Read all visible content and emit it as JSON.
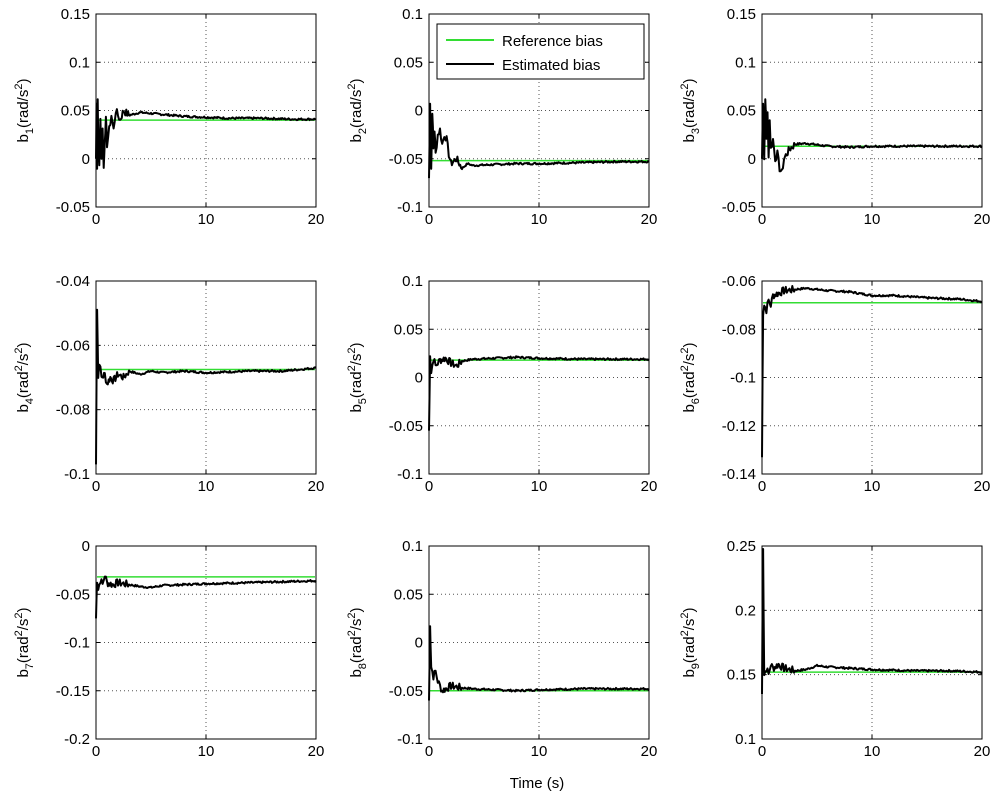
{
  "figure": {
    "legend": {
      "reference": "Reference bias",
      "estimated": "Estimated bias"
    },
    "xlabel": "Time (s)",
    "reference_color": "#33dd33",
    "estimate_color": "#000000"
  },
  "chart_data": [
    {
      "type": "line",
      "ylabel": {
        "sym": "b",
        "sub": "1",
        "unit": "(rad/s",
        "unitSup": "2",
        "close": ")"
      },
      "xlim": [
        0,
        20
      ],
      "ylim": [
        -0.05,
        0.15
      ],
      "xticks": [
        0,
        10,
        20
      ],
      "yticks": [
        -0.05,
        0,
        0.05,
        0.1,
        0.15
      ],
      "xticklabels": [
        "0",
        "10",
        "20"
      ],
      "yticklabels": [
        "-0.05",
        "0",
        "0.05",
        "0.1",
        "0.15"
      ],
      "reference": 0.04,
      "estimate": [
        [
          0,
          0.0
        ],
        [
          0.05,
          0.06
        ],
        [
          0.1,
          -0.01
        ],
        [
          0.15,
          0.065
        ],
        [
          0.2,
          0.02
        ],
        [
          0.3,
          -0.005
        ],
        [
          0.4,
          0.04
        ],
        [
          0.5,
          0.0
        ],
        [
          0.6,
          0.03
        ],
        [
          0.7,
          -0.01
        ],
        [
          0.8,
          0.02
        ],
        [
          0.9,
          0.04
        ],
        [
          1.0,
          0.015
        ],
        [
          1.2,
          0.03
        ],
        [
          1.4,
          0.045
        ],
        [
          1.6,
          0.03
        ],
        [
          1.8,
          0.05
        ],
        [
          2.0,
          0.045
        ],
        [
          2.2,
          0.04
        ],
        [
          2.5,
          0.05
        ],
        [
          3.0,
          0.045
        ],
        [
          4.0,
          0.048
        ],
        [
          6.0,
          0.046
        ],
        [
          8.0,
          0.044
        ],
        [
          10.0,
          0.043
        ],
        [
          12.0,
          0.042
        ],
        [
          15.0,
          0.042
        ],
        [
          18.0,
          0.041
        ],
        [
          20.0,
          0.041
        ]
      ]
    },
    {
      "type": "line",
      "ylabel": {
        "sym": "b",
        "sub": "2",
        "unit": "(rad/s",
        "unitSup": "2",
        "close": ")"
      },
      "xlim": [
        0,
        20
      ],
      "ylim": [
        -0.1,
        0.1
      ],
      "xticks": [
        0,
        10,
        20
      ],
      "yticks": [
        -0.1,
        -0.05,
        0,
        0.05,
        0.1
      ],
      "xticklabels": [
        "0",
        "10",
        "20"
      ],
      "yticklabels": [
        "-0.1",
        "-0.05",
        "0",
        "0.05",
        "0.1"
      ],
      "reference": -0.052,
      "estimate": [
        [
          0,
          -0.07
        ],
        [
          0.1,
          0.01
        ],
        [
          0.2,
          -0.06
        ],
        [
          0.3,
          0.0
        ],
        [
          0.4,
          -0.04
        ],
        [
          0.5,
          -0.02
        ],
        [
          0.6,
          -0.045
        ],
        [
          0.8,
          -0.025
        ],
        [
          1.0,
          -0.02
        ],
        [
          1.2,
          -0.035
        ],
        [
          1.4,
          -0.025
        ],
        [
          1.6,
          -0.03
        ],
        [
          1.8,
          -0.045
        ],
        [
          2.0,
          -0.055
        ],
        [
          2.5,
          -0.05
        ],
        [
          3.0,
          -0.06
        ],
        [
          3.5,
          -0.055
        ],
        [
          4.0,
          -0.057
        ],
        [
          6.0,
          -0.056
        ],
        [
          8.0,
          -0.055
        ],
        [
          10.0,
          -0.055
        ],
        [
          14.0,
          -0.054
        ],
        [
          17.0,
          -0.053
        ],
        [
          20.0,
          -0.053
        ]
      ]
    },
    {
      "type": "line",
      "ylabel": {
        "sym": "b",
        "sub": "3",
        "unit": "(rad/s",
        "unitSup": "2",
        "close": ")"
      },
      "xlim": [
        0,
        20
      ],
      "ylim": [
        -0.05,
        0.15
      ],
      "xticks": [
        0,
        10,
        20
      ],
      "yticks": [
        -0.05,
        0,
        0.05,
        0.1,
        0.15
      ],
      "xticklabels": [
        "0",
        "10",
        "20"
      ],
      "yticklabels": [
        "-0.05",
        "0",
        "0.05",
        "0.1",
        "0.15"
      ],
      "reference": 0.013,
      "estimate": [
        [
          0,
          0.0
        ],
        [
          0.1,
          0.06
        ],
        [
          0.2,
          0.0
        ],
        [
          0.3,
          0.065
        ],
        [
          0.4,
          0.02
        ],
        [
          0.5,
          0.05
        ],
        [
          0.6,
          0.0
        ],
        [
          0.7,
          0.04
        ],
        [
          0.8,
          0.01
        ],
        [
          1.0,
          0.02
        ],
        [
          1.2,
          0.0
        ],
        [
          1.4,
          0.005
        ],
        [
          1.6,
          -0.01
        ],
        [
          1.8,
          -0.015
        ],
        [
          2.0,
          0.0
        ],
        [
          2.5,
          0.01
        ],
        [
          3.0,
          0.015
        ],
        [
          4.0,
          0.016
        ],
        [
          6.0,
          0.013
        ],
        [
          8.0,
          0.012
        ],
        [
          10.0,
          0.013
        ],
        [
          15.0,
          0.013
        ],
        [
          20.0,
          0.013
        ]
      ]
    },
    {
      "type": "line",
      "ylabel": {
        "sym": "b",
        "sub": "4",
        "unit": "(rad",
        "unitSup": "2",
        "close": "/s",
        "closeSup": "2",
        "end": ")"
      },
      "xlim": [
        0,
        20
      ],
      "ylim": [
        -0.1,
        -0.04
      ],
      "xticks": [
        0,
        10,
        20
      ],
      "yticks": [
        -0.1,
        -0.08,
        -0.06,
        -0.04
      ],
      "xticklabels": [
        "0",
        "10",
        "20"
      ],
      "yticklabels": [
        "-0.1",
        "-0.08",
        "-0.06",
        "-0.04"
      ],
      "reference": -0.0675,
      "estimate": [
        [
          0,
          -0.097
        ],
        [
          0.1,
          -0.048
        ],
        [
          0.2,
          -0.07
        ],
        [
          0.3,
          -0.065
        ],
        [
          0.5,
          -0.07
        ],
        [
          0.8,
          -0.069
        ],
        [
          1.0,
          -0.072
        ],
        [
          1.3,
          -0.07
        ],
        [
          1.6,
          -0.071
        ],
        [
          2.0,
          -0.069
        ],
        [
          2.5,
          -0.07
        ],
        [
          3.0,
          -0.068
        ],
        [
          4.0,
          -0.069
        ],
        [
          5.0,
          -0.068
        ],
        [
          6.0,
          -0.0685
        ],
        [
          8.0,
          -0.068
        ],
        [
          10.0,
          -0.0685
        ],
        [
          14.0,
          -0.068
        ],
        [
          17.0,
          -0.068
        ],
        [
          20.0,
          -0.067
        ]
      ]
    },
    {
      "type": "line",
      "ylabel": {
        "sym": "b",
        "sub": "5",
        "unit": "(rad",
        "unitSup": "2",
        "close": "/s",
        "closeSup": "2",
        "end": ")"
      },
      "xlim": [
        0,
        20
      ],
      "ylim": [
        -0.1,
        0.1
      ],
      "xticks": [
        0,
        10,
        20
      ],
      "yticks": [
        -0.1,
        -0.05,
        0,
        0.05,
        0.1
      ],
      "xticklabels": [
        "0",
        "10",
        "20"
      ],
      "yticklabels": [
        "-0.1",
        "-0.05",
        "0",
        "0.05",
        "0.1"
      ],
      "reference": 0.018,
      "estimate": [
        [
          0,
          -0.055
        ],
        [
          0.1,
          0.025
        ],
        [
          0.2,
          0.005
        ],
        [
          0.4,
          0.02
        ],
        [
          0.6,
          0.012
        ],
        [
          0.8,
          0.015
        ],
        [
          1.0,
          0.018
        ],
        [
          1.5,
          0.02
        ],
        [
          2.0,
          0.015
        ],
        [
          2.5,
          0.012
        ],
        [
          3.0,
          0.017
        ],
        [
          4.0,
          0.019
        ],
        [
          6.0,
          0.02
        ],
        [
          8.0,
          0.021
        ],
        [
          10.0,
          0.02
        ],
        [
          14.0,
          0.019
        ],
        [
          20.0,
          0.019
        ]
      ]
    },
    {
      "type": "line",
      "ylabel": {
        "sym": "b",
        "sub": "6",
        "unit": "(rad",
        "unitSup": "2",
        "close": "/s",
        "closeSup": "2",
        "end": ")"
      },
      "xlim": [
        0,
        20
      ],
      "ylim": [
        -0.14,
        -0.06
      ],
      "xticks": [
        0,
        10,
        20
      ],
      "yticks": [
        -0.14,
        -0.12,
        -0.1,
        -0.08,
        -0.06
      ],
      "xticklabels": [
        "0",
        "10",
        "20"
      ],
      "yticklabels": [
        "-0.14",
        "-0.12",
        "-0.1",
        "-0.08",
        "-0.06"
      ],
      "reference": -0.069,
      "estimate": [
        [
          0,
          -0.133
        ],
        [
          0.1,
          -0.073
        ],
        [
          0.2,
          -0.07
        ],
        [
          0.4,
          -0.072
        ],
        [
          0.6,
          -0.068
        ],
        [
          0.8,
          -0.07
        ],
        [
          1.0,
          -0.066
        ],
        [
          1.5,
          -0.065
        ],
        [
          2.0,
          -0.064
        ],
        [
          3.0,
          -0.0635
        ],
        [
          4.0,
          -0.063
        ],
        [
          5.0,
          -0.0635
        ],
        [
          6.0,
          -0.064
        ],
        [
          8.0,
          -0.0645
        ],
        [
          10.0,
          -0.066
        ],
        [
          12.0,
          -0.066
        ],
        [
          15.0,
          -0.067
        ],
        [
          18.0,
          -0.0675
        ],
        [
          20.0,
          -0.0685
        ]
      ]
    },
    {
      "type": "line",
      "ylabel": {
        "sym": "b",
        "sub": "7",
        "unit": "(rad",
        "unitSup": "2",
        "close": "/s",
        "closeSup": "2",
        "end": ")"
      },
      "xlim": [
        0,
        20
      ],
      "ylim": [
        -0.2,
        0
      ],
      "xticks": [
        0,
        10,
        20
      ],
      "yticks": [
        -0.2,
        -0.15,
        -0.1,
        -0.05,
        0
      ],
      "xticklabels": [
        "0",
        "10",
        "20"
      ],
      "yticklabels": [
        "-0.2",
        "-0.15",
        "-0.1",
        "-0.05",
        "0"
      ],
      "reference": -0.032,
      "estimate": [
        [
          0,
          -0.075
        ],
        [
          0.1,
          -0.035
        ],
        [
          0.2,
          -0.045
        ],
        [
          0.4,
          -0.035
        ],
        [
          0.6,
          -0.04
        ],
        [
          0.8,
          -0.03
        ],
        [
          1.0,
          -0.038
        ],
        [
          1.5,
          -0.04
        ],
        [
          2.0,
          -0.038
        ],
        [
          3.0,
          -0.04
        ],
        [
          4.0,
          -0.042
        ],
        [
          5.0,
          -0.043
        ],
        [
          6.0,
          -0.041
        ],
        [
          8.0,
          -0.04
        ],
        [
          10.0,
          -0.039
        ],
        [
          14.0,
          -0.038
        ],
        [
          17.0,
          -0.037
        ],
        [
          20.0,
          -0.036
        ]
      ]
    },
    {
      "type": "line",
      "ylabel": {
        "sym": "b",
        "sub": "8",
        "unit": "(rad",
        "unitSup": "2",
        "close": "/s",
        "closeSup": "2",
        "end": ")"
      },
      "xlim": [
        0,
        20
      ],
      "ylim": [
        -0.1,
        0.1
      ],
      "xticks": [
        0,
        10,
        20
      ],
      "yticks": [
        -0.1,
        -0.05,
        0,
        0.05,
        0.1
      ],
      "xticklabels": [
        "0",
        "10",
        "20"
      ],
      "yticklabels": [
        "-0.1",
        "-0.05",
        "0",
        "0.05",
        "0.1"
      ],
      "reference": -0.05,
      "estimate": [
        [
          0,
          -0.06
        ],
        [
          0.1,
          0.02
        ],
        [
          0.2,
          -0.025
        ],
        [
          0.4,
          -0.035
        ],
        [
          0.6,
          -0.03
        ],
        [
          0.8,
          -0.04
        ],
        [
          1.0,
          -0.045
        ],
        [
          1.2,
          -0.05
        ],
        [
          1.5,
          -0.048
        ],
        [
          2.0,
          -0.045
        ],
        [
          3.0,
          -0.047
        ],
        [
          4.0,
          -0.048
        ],
        [
          6.0,
          -0.049
        ],
        [
          8.0,
          -0.05
        ],
        [
          10.0,
          -0.049
        ],
        [
          14.0,
          -0.048
        ],
        [
          20.0,
          -0.048
        ]
      ]
    },
    {
      "type": "line",
      "ylabel": {
        "sym": "b",
        "sub": "9",
        "unit": "(rad",
        "unitSup": "2",
        "close": "/s",
        "closeSup": "2",
        "end": ")"
      },
      "xlim": [
        0,
        20
      ],
      "ylim": [
        0.1,
        0.25
      ],
      "xticks": [
        0,
        10,
        20
      ],
      "yticks": [
        0.1,
        0.15,
        0.2,
        0.25
      ],
      "xticklabels": [
        "0",
        "10",
        "20"
      ],
      "yticklabels": [
        "0.1",
        "0.15",
        "0.2",
        "0.25"
      ],
      "reference": 0.152,
      "estimate": [
        [
          0,
          0.135
        ],
        [
          0.1,
          0.25
        ],
        [
          0.2,
          0.15
        ],
        [
          0.4,
          0.155
        ],
        [
          0.6,
          0.15
        ],
        [
          0.8,
          0.158
        ],
        [
          1.0,
          0.155
        ],
        [
          1.5,
          0.158
        ],
        [
          2.0,
          0.155
        ],
        [
          3.0,
          0.153
        ],
        [
          4.0,
          0.154
        ],
        [
          5.0,
          0.157
        ],
        [
          6.0,
          0.156
        ],
        [
          8.0,
          0.155
        ],
        [
          10.0,
          0.154
        ],
        [
          14.0,
          0.153
        ],
        [
          17.0,
          0.153
        ],
        [
          20.0,
          0.152
        ]
      ]
    }
  ]
}
